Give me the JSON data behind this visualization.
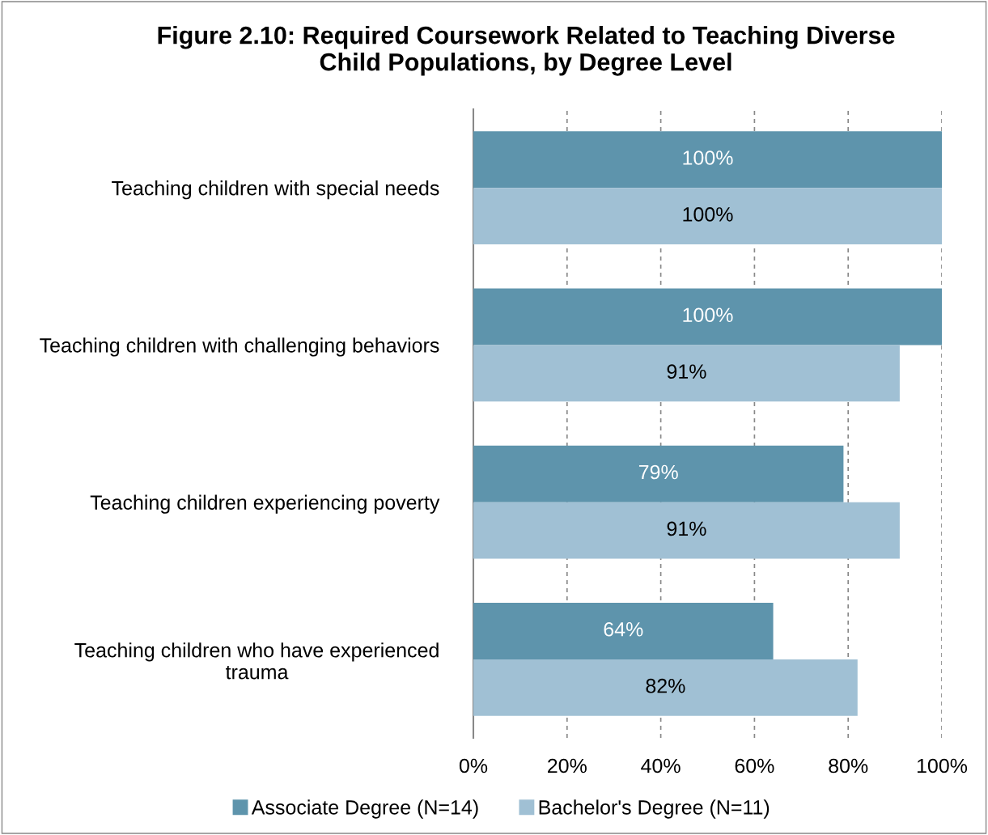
{
  "chart_data": {
    "type": "bar",
    "orientation": "horizontal",
    "title": "Figure 2.10: Required Coursework Related to Teaching Diverse\nChild Populations, by Degree Level",
    "categories": [
      "Teaching children with special needs",
      "Teaching children with challenging behaviors",
      "Teaching children experiencing poverty",
      "Teaching children who have experienced\ntrauma"
    ],
    "series": [
      {
        "name": "Associate Degree (N=14)",
        "color": "#5e94ac",
        "values": [
          100,
          100,
          79,
          64
        ],
        "value_labels": [
          "100%",
          "100%",
          "79%",
          "64%"
        ]
      },
      {
        "name": "Bachelor's Degree (N=11)",
        "color": "#a0c0d4",
        "values": [
          100,
          91,
          91,
          82
        ],
        "value_labels": [
          "100%",
          "91%",
          "91%",
          "82%"
        ]
      }
    ],
    "xlim": [
      0,
      100
    ],
    "xticks": [
      {
        "value": 0,
        "label": "0%"
      },
      {
        "value": 20,
        "label": "20%"
      },
      {
        "value": 40,
        "label": "40%"
      },
      {
        "value": 60,
        "label": "60%"
      },
      {
        "value": 80,
        "label": "80%"
      },
      {
        "value": 100,
        "label": "100%"
      }
    ],
    "grid": "x",
    "legend": "bottom"
  }
}
